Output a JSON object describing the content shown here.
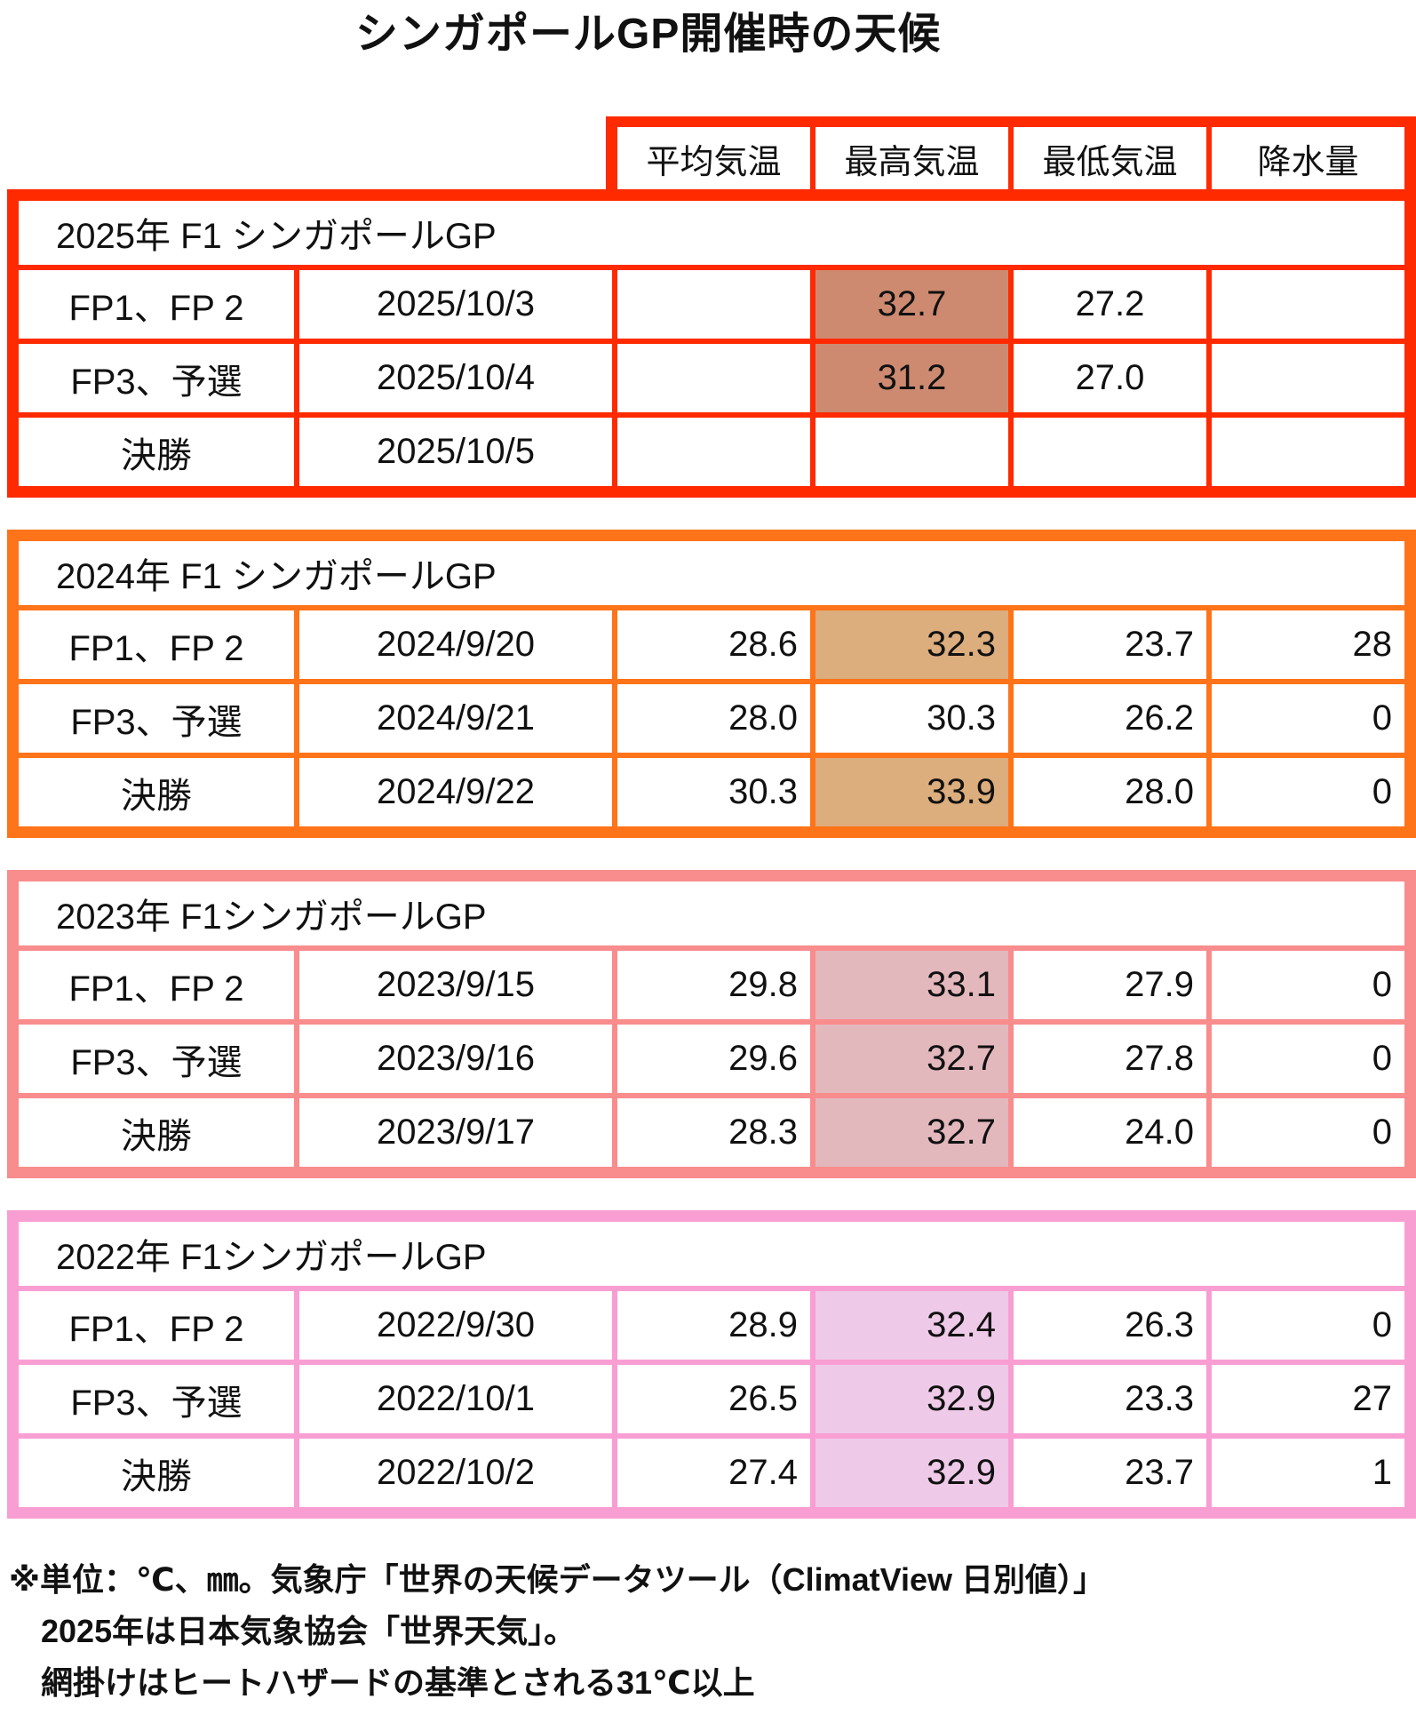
{
  "title": "シンガポールGP開催時の天候",
  "column_headers": [
    "平均気温",
    "最高気温",
    "最低気温",
    "降水量"
  ],
  "chart_data": [
    {
      "type": "table",
      "title": "2025年 F1 シンガポールGP",
      "year": "2025",
      "border_color": "#ff2a00",
      "highlight_color": "#cd8a71",
      "rows": [
        {
          "session": "FP1、FP 2",
          "date": "2025/10/3",
          "avg": "",
          "max": "32.7",
          "max_hot": true,
          "min": "27.2",
          "rain": ""
        },
        {
          "session": "FP3、予選",
          "date": "2025/10/4",
          "avg": "",
          "max": "31.2",
          "max_hot": true,
          "min": "27.0",
          "rain": ""
        },
        {
          "session": "決勝",
          "date": "2025/10/5",
          "avg": "",
          "max": "",
          "max_hot": false,
          "min": "",
          "rain": ""
        }
      ]
    },
    {
      "type": "table",
      "title": "2024年 F1 シンガポールGP",
      "year": "2024",
      "border_color": "#ff7419",
      "highlight_color": "#dcad7d",
      "rows": [
        {
          "session": "FP1、FP 2",
          "date": "2024/9/20",
          "avg": "28.6",
          "max": "32.3",
          "max_hot": true,
          "min": "23.7",
          "rain": "28"
        },
        {
          "session": "FP3、予選",
          "date": "2024/9/21",
          "avg": "28.0",
          "max": "30.3",
          "max_hot": false,
          "min": "26.2",
          "rain": "0"
        },
        {
          "session": "決勝",
          "date": "2024/9/22",
          "avg": "30.3",
          "max": "33.9",
          "max_hot": true,
          "min": "28.0",
          "rain": "0"
        }
      ]
    },
    {
      "type": "table",
      "title": "2023年 F1シンガポールGP",
      "year": "2023",
      "border_color": "#f98c8c",
      "highlight_color": "#e3b8bd",
      "rows": [
        {
          "session": "FP1、FP 2",
          "date": "2023/9/15",
          "avg": "29.8",
          "max": "33.1",
          "max_hot": true,
          "min": "27.9",
          "rain": "0"
        },
        {
          "session": "FP3、予選",
          "date": "2023/9/16",
          "avg": "29.6",
          "max": "32.7",
          "max_hot": true,
          "min": "27.8",
          "rain": "0"
        },
        {
          "session": "決勝",
          "date": "2023/9/17",
          "avg": "28.3",
          "max": "32.7",
          "max_hot": true,
          "min": "24.0",
          "rain": "0"
        }
      ]
    },
    {
      "type": "table",
      "title": "2022年 F1シンガポールGP",
      "year": "2022",
      "border_color": "#f99ed3",
      "highlight_color": "#eecae8",
      "rows": [
        {
          "session": "FP1、FP 2",
          "date": "2022/9/30",
          "avg": "28.9",
          "max": "32.4",
          "max_hot": true,
          "min": "26.3",
          "rain": "0"
        },
        {
          "session": "FP3、予選",
          "date": "2022/10/1",
          "avg": "26.5",
          "max": "32.9",
          "max_hot": true,
          "min": "23.3",
          "rain": "27"
        },
        {
          "session": "決勝",
          "date": "2022/10/2",
          "avg": "27.4",
          "max": "32.9",
          "max_hot": true,
          "min": "23.7",
          "rain": "1"
        }
      ]
    }
  ],
  "notes": [
    "※単位：℃、㎜。気象庁「世界の天候データツール（ClimatView 日別値）」",
    "2025年は日本気象協会「世界天気」。",
    "網掛けはヒートハザードの基準とされる31℃以上"
  ]
}
